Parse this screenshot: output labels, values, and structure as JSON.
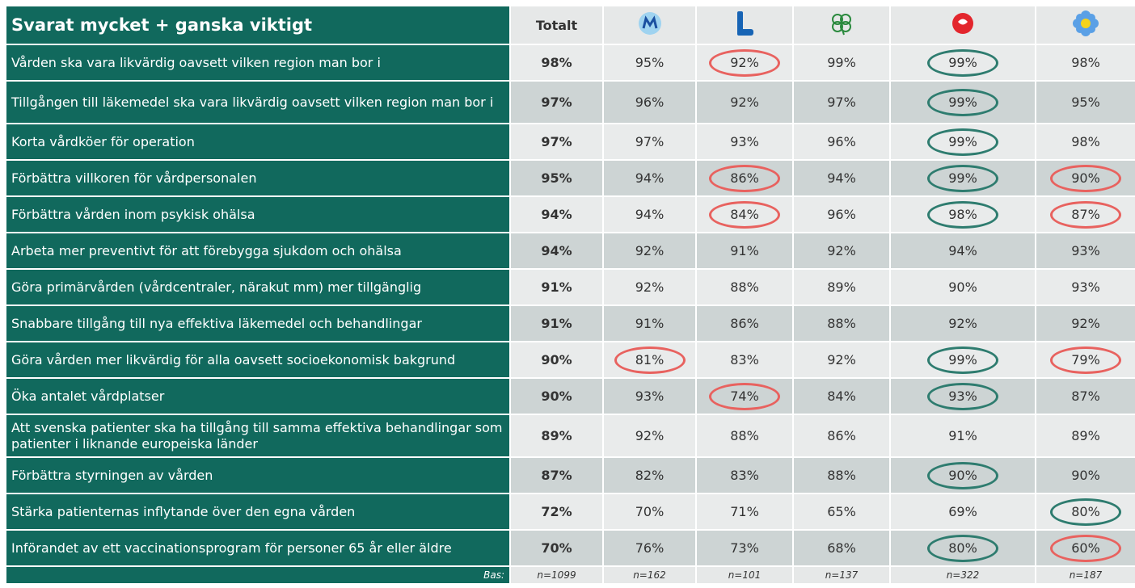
{
  "header": {
    "title": "Svarat mycket + ganska viktigt",
    "columns": [
      "Totalt"
    ]
  },
  "rows": [
    {
      "label": "Vården ska vara likvärdig oavsett vilken region man bor i",
      "cells": [
        "98%",
        "95%",
        "92%",
        "99%",
        "99%",
        "98%"
      ],
      "circled": [
        null,
        null,
        "#e8625f",
        null,
        "#2e7c6f",
        null
      ]
    },
    {
      "label": "Tillgången till läkemedel ska vara likvärdig oavsett vilken region man bor i",
      "cells": [
        "97%",
        "96%",
        "92%",
        "97%",
        "99%",
        "95%"
      ],
      "circled": [
        null,
        null,
        null,
        null,
        "#2e7c6f",
        null
      ]
    },
    {
      "label": "Korta vårdköer för operation",
      "cells": [
        "97%",
        "97%",
        "93%",
        "96%",
        "99%",
        "98%"
      ],
      "circled": [
        null,
        null,
        null,
        null,
        "#2e7c6f",
        null
      ]
    },
    {
      "label": "Förbättra villkoren för vårdpersonalen",
      "cells": [
        "95%",
        "94%",
        "86%",
        "94%",
        "99%",
        "90%"
      ],
      "circled": [
        null,
        null,
        "#e8625f",
        null,
        "#2e7c6f",
        "#e8625f"
      ]
    },
    {
      "label": "Förbättra vården inom psykisk ohälsa",
      "cells": [
        "94%",
        "94%",
        "84%",
        "96%",
        "98%",
        "87%"
      ],
      "circled": [
        null,
        null,
        "#e8625f",
        null,
        "#2e7c6f",
        "#e8625f"
      ]
    },
    {
      "label": "Arbeta mer preventivt för att förebygga sjukdom och ohälsa",
      "cells": [
        "94%",
        "92%",
        "91%",
        "92%",
        "94%",
        "93%"
      ],
      "circled": [
        null,
        null,
        null,
        null,
        null,
        null
      ]
    },
    {
      "label": "Göra primärvården (vårdcentraler, närakut mm) mer tillgänglig",
      "cells": [
        "91%",
        "92%",
        "88%",
        "89%",
        "90%",
        "93%"
      ],
      "circled": [
        null,
        null,
        null,
        null,
        null,
        null
      ]
    },
    {
      "label": "Snabbare tillgång till nya effektiva läkemedel och behandlingar",
      "cells": [
        "91%",
        "91%",
        "86%",
        "88%",
        "92%",
        "92%"
      ],
      "circled": [
        null,
        null,
        null,
        null,
        null,
        null
      ]
    },
    {
      "label": "Göra vården mer likvärdig för alla oavsett socioekonomisk bakgrund",
      "cells": [
        "90%",
        "81%",
        "83%",
        "92%",
        "99%",
        "79%"
      ],
      "circled": [
        null,
        "#e8625f",
        null,
        null,
        "#2e7c6f",
        "#e8625f"
      ]
    },
    {
      "label": "Öka antalet vårdplatser",
      "cells": [
        "90%",
        "93%",
        "74%",
        "84%",
        "93%",
        "87%"
      ],
      "circled": [
        null,
        null,
        "#e8625f",
        null,
        "#2e7c6f",
        null
      ]
    },
    {
      "label": "Att svenska patienter ska ha tillgång till samma effektiva behandlingar som patienter i liknande europeiska länder",
      "cells": [
        "89%",
        "92%",
        "88%",
        "86%",
        "91%",
        "89%"
      ],
      "circled": [
        null,
        null,
        null,
        null,
        null,
        null
      ]
    },
    {
      "label": "Förbättra styrningen av vården",
      "cells": [
        "87%",
        "82%",
        "83%",
        "88%",
        "90%",
        "90%"
      ],
      "circled": [
        null,
        null,
        null,
        null,
        "#2e7c6f",
        null
      ]
    },
    {
      "label": "Stärka patienternas inflytande över den egna vården",
      "cells": [
        "72%",
        "70%",
        "71%",
        "65%",
        "69%",
        "80%"
      ],
      "circled": [
        null,
        null,
        null,
        null,
        null,
        "#2e7c6f"
      ]
    },
    {
      "label": "Införandet av ett vaccinationsprogram för personer 65 år eller äldre",
      "cells": [
        "70%",
        "76%",
        "73%",
        "68%",
        "80%",
        "60%"
      ],
      "circled": [
        null,
        null,
        null,
        null,
        "#2e7c6f",
        "#e8625f"
      ]
    }
  ],
  "footer": {
    "label": "Bas:",
    "cells": [
      "n=1099",
      "n=162",
      "n=101",
      "n=137",
      "n=322",
      "n=187"
    ]
  }
}
